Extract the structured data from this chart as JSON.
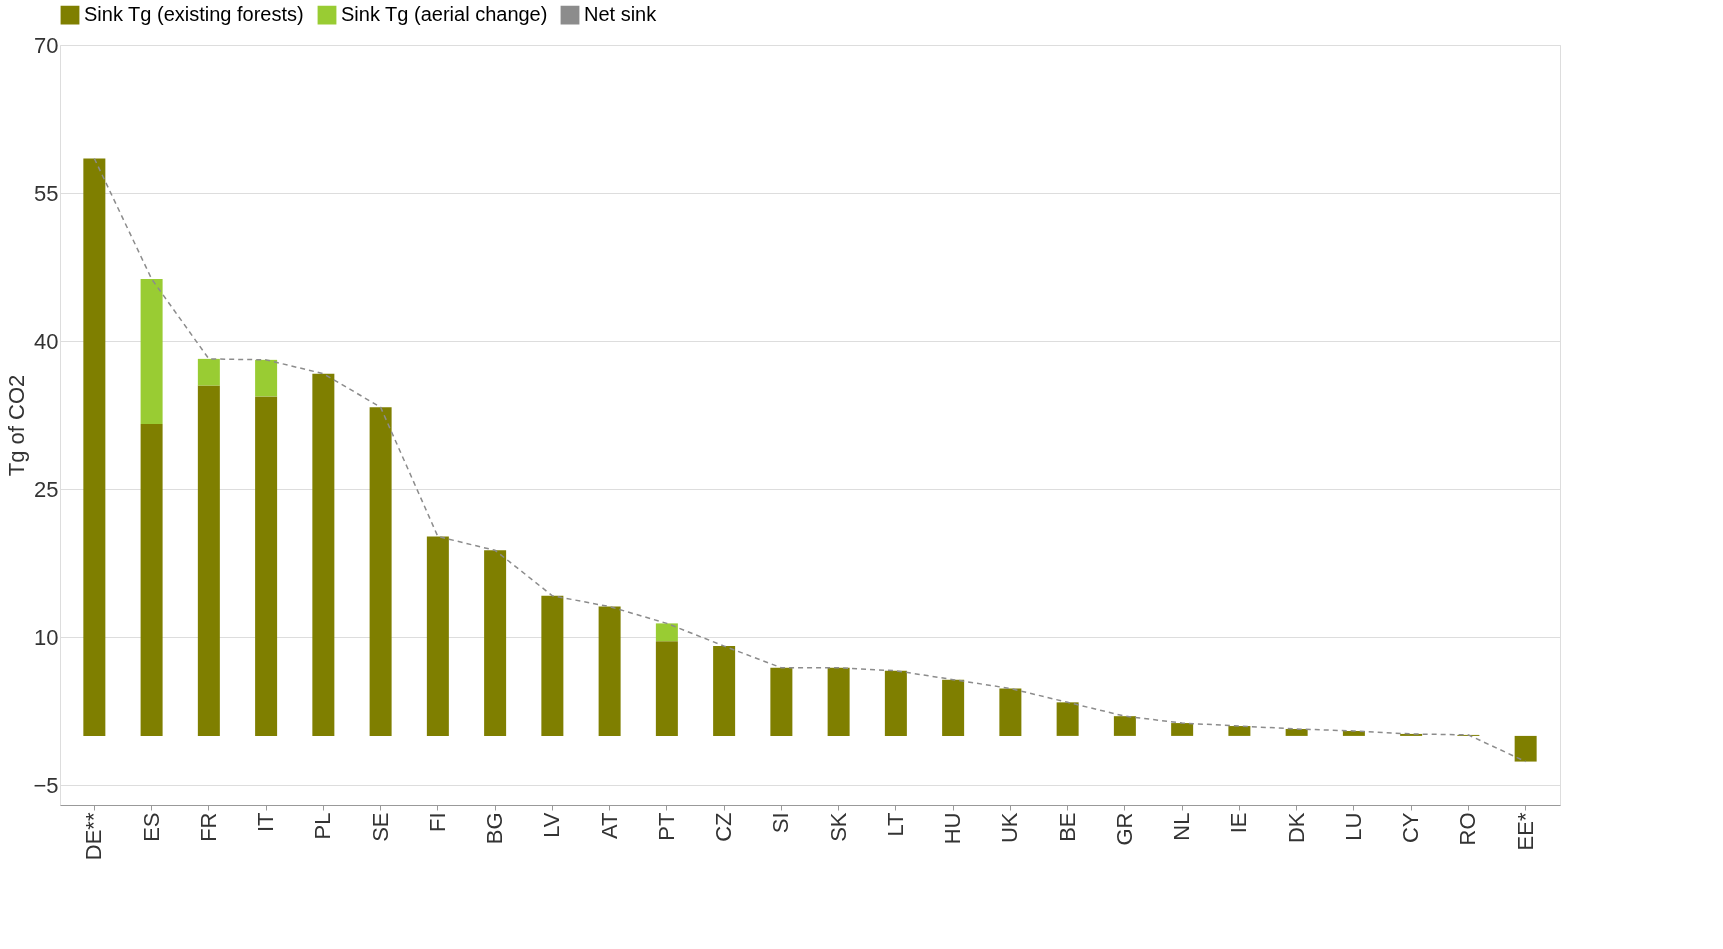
{
  "chart_data": {
    "type": "bar",
    "stacked": true,
    "ylabel": "Tg of CO2",
    "categories": [
      "DE**",
      "ES",
      "FR",
      "IT",
      "PL",
      "SE",
      "FI",
      "BG",
      "LV",
      "AT",
      "PT",
      "CZ",
      "SI",
      "SK",
      "LT",
      "HU",
      "UK",
      "BE",
      "GR",
      "NL",
      "IE",
      "DK",
      "LU",
      "CY",
      "RO",
      "EE*"
    ],
    "series": [
      {
        "name": "Sink Tg (existing forests)",
        "color": "#7f7f00",
        "values": [
          58.5,
          31.6,
          35.5,
          34.4,
          36.7,
          33.3,
          20.2,
          18.8,
          14.2,
          13.1,
          9.6,
          9.1,
          6.9,
          6.9,
          6.6,
          5.7,
          4.8,
          3.4,
          2.0,
          1.3,
          1.0,
          0.7,
          0.5,
          0.2,
          0.1,
          -2.6
        ]
      },
      {
        "name": "Sink Tg (aerial change)",
        "color": "#99cc33",
        "values": [
          0,
          14.7,
          2.7,
          3.7,
          0,
          0,
          0,
          0,
          0,
          0,
          1.8,
          0,
          0,
          0,
          0,
          0,
          0,
          0,
          0,
          0,
          0,
          0,
          0,
          0,
          0,
          0
        ]
      },
      {
        "name": "Net sink",
        "type": "line",
        "color": "#8c8c8c",
        "line_style": "dashed",
        "values": [
          58.5,
          46.3,
          38.2,
          38.1,
          36.7,
          33.3,
          20.2,
          18.8,
          14.2,
          13.1,
          11.4,
          9.1,
          6.9,
          6.9,
          6.6,
          5.7,
          4.8,
          3.4,
          2.0,
          1.3,
          1.0,
          0.7,
          0.5,
          0.2,
          0.1,
          -2.6
        ]
      }
    ],
    "ylim": [
      -7,
      70
    ],
    "yticks": [
      70,
      55,
      40,
      25,
      10,
      -5
    ],
    "grid": "y",
    "legend": "top"
  }
}
